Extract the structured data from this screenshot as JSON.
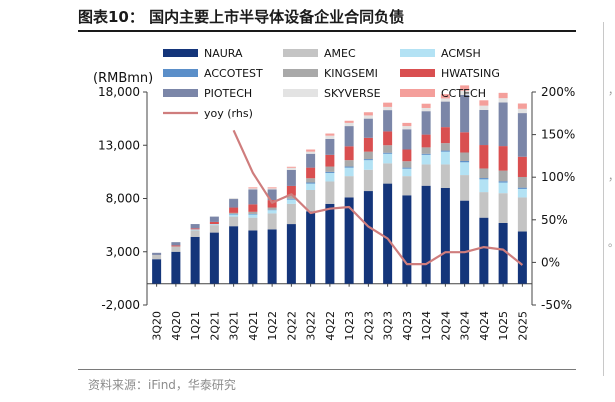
{
  "figure": {
    "title": "图表10：  国内主要上市半导体设备企业合同负债",
    "source": "资料来源：iFind，华泰研究"
  },
  "chart_data": {
    "type": "bar",
    "stacked": true,
    "title": "图表10：  国内主要上市半导体设备企业合同负债",
    "ylabel": "(RMBmn)",
    "ylim": [
      -2000,
      18000
    ],
    "yticks": [
      "-2,000",
      "3,000",
      "8,000",
      "13,000",
      "18,000"
    ],
    "yticks_values": [
      -2000,
      3000,
      8000,
      13000,
      18000
    ],
    "y2lim": [
      -50,
      200
    ],
    "y2ticks": [
      "-50%",
      "0%",
      "50%",
      "100%",
      "150%",
      "200%"
    ],
    "y2ticks_values": [
      -50,
      0,
      50,
      100,
      150,
      200
    ],
    "categories": [
      "3Q20",
      "4Q20",
      "1Q21",
      "2Q21",
      "3Q21",
      "4Q21",
      "1Q22",
      "2Q22",
      "3Q22",
      "4Q22",
      "1Q23",
      "2Q23",
      "3Q23",
      "4Q23",
      "1Q24",
      "2Q24",
      "3Q24",
      "4Q24",
      "1Q25",
      "2Q25"
    ],
    "series": [
      {
        "name": "NAURA",
        "color": "#14357a",
        "values": [
          2300,
          3000,
          4400,
          4800,
          5400,
          5000,
          5100,
          5600,
          6800,
          7500,
          8100,
          8700,
          9400,
          8300,
          9200,
          9000,
          7800,
          6200,
          5700,
          4900
        ]
      },
      {
        "name": "AMEC",
        "color": "#c4c4c4",
        "values": [
          400,
          500,
          600,
          700,
          900,
          1200,
          1500,
          1900,
          2000,
          2100,
          2000,
          2000,
          1900,
          1800,
          2000,
          2200,
          2400,
          2400,
          2800,
          3200
        ]
      },
      {
        "name": "ACMSH",
        "color": "#b3e2f4",
        "values": [
          0,
          0,
          100,
          100,
          200,
          300,
          300,
          400,
          600,
          800,
          800,
          900,
          900,
          700,
          900,
          1200,
          1200,
          1200,
          1000,
          800
        ]
      },
      {
        "name": "ACCOTEST",
        "color": "#5b8fc9",
        "values": [
          0,
          0,
          0,
          0,
          50,
          50,
          50,
          80,
          100,
          100,
          100,
          100,
          100,
          100,
          100,
          100,
          120,
          120,
          120,
          120
        ]
      },
      {
        "name": "KINGSEMI",
        "color": "#a9a9a9",
        "values": [
          0,
          0,
          0,
          0,
          100,
          200,
          200,
          300,
          400,
          500,
          600,
          700,
          700,
          600,
          600,
          700,
          800,
          900,
          1000,
          1000
        ]
      },
      {
        "name": "HWATSING",
        "color": "#d94f50",
        "values": [
          0,
          100,
          100,
          200,
          500,
          700,
          700,
          900,
          1000,
          1100,
          1300,
          1300,
          1300,
          1100,
          1200,
          1500,
          1900,
          2200,
          2300,
          1900
        ]
      },
      {
        "name": "PIOTECH",
        "color": "#7b86a8",
        "values": [
          200,
          300,
          400,
          500,
          800,
          1400,
          1000,
          1500,
          1300,
          1500,
          1900,
          1800,
          2000,
          1900,
          2200,
          2400,
          3500,
          3300,
          4100,
          4100
        ]
      },
      {
        "name": "SKYVERSE",
        "color": "#e3e3e3",
        "values": [
          0,
          0,
          0,
          0,
          100,
          100,
          100,
          200,
          200,
          300,
          300,
          300,
          300,
          300,
          300,
          300,
          400,
          400,
          400,
          400
        ]
      },
      {
        "name": "CCTECH",
        "color": "#f49f9b",
        "values": [
          0,
          0,
          0,
          0,
          0,
          100,
          100,
          100,
          200,
          200,
          200,
          300,
          400,
          300,
          400,
          400,
          500,
          500,
          500,
          500
        ]
      }
    ],
    "line": {
      "name": "yoy (rhs)",
      "color": "#cf7d7d",
      "axis": "right",
      "values": [
        null,
        null,
        null,
        null,
        155,
        105,
        70,
        80,
        58,
        63,
        65,
        42,
        28,
        -2,
        -2,
        12,
        12,
        18,
        15,
        -3
      ]
    },
    "legend": {
      "placement": "top-left",
      "entries": [
        {
          "label": "NAURA",
          "color": "#14357a",
          "kind": "bar"
        },
        {
          "label": "AMEC",
          "color": "#c4c4c4",
          "kind": "bar"
        },
        {
          "label": "ACMSH",
          "color": "#b3e2f4",
          "kind": "bar"
        },
        {
          "label": "ACCOTEST",
          "color": "#5b8fc9",
          "kind": "bar"
        },
        {
          "label": "KINGSEMI",
          "color": "#a9a9a9",
          "kind": "bar"
        },
        {
          "label": "HWATSING",
          "color": "#d94f50",
          "kind": "bar"
        },
        {
          "label": "PIOTECH",
          "color": "#7b86a8",
          "kind": "bar"
        },
        {
          "label": "SKYVERSE",
          "color": "#e3e3e3",
          "kind": "bar"
        },
        {
          "label": "CCTECH",
          "color": "#f49f9b",
          "kind": "bar"
        },
        {
          "label": "yoy (rhs)",
          "color": "#cf7d7d",
          "kind": "line"
        }
      ]
    }
  }
}
